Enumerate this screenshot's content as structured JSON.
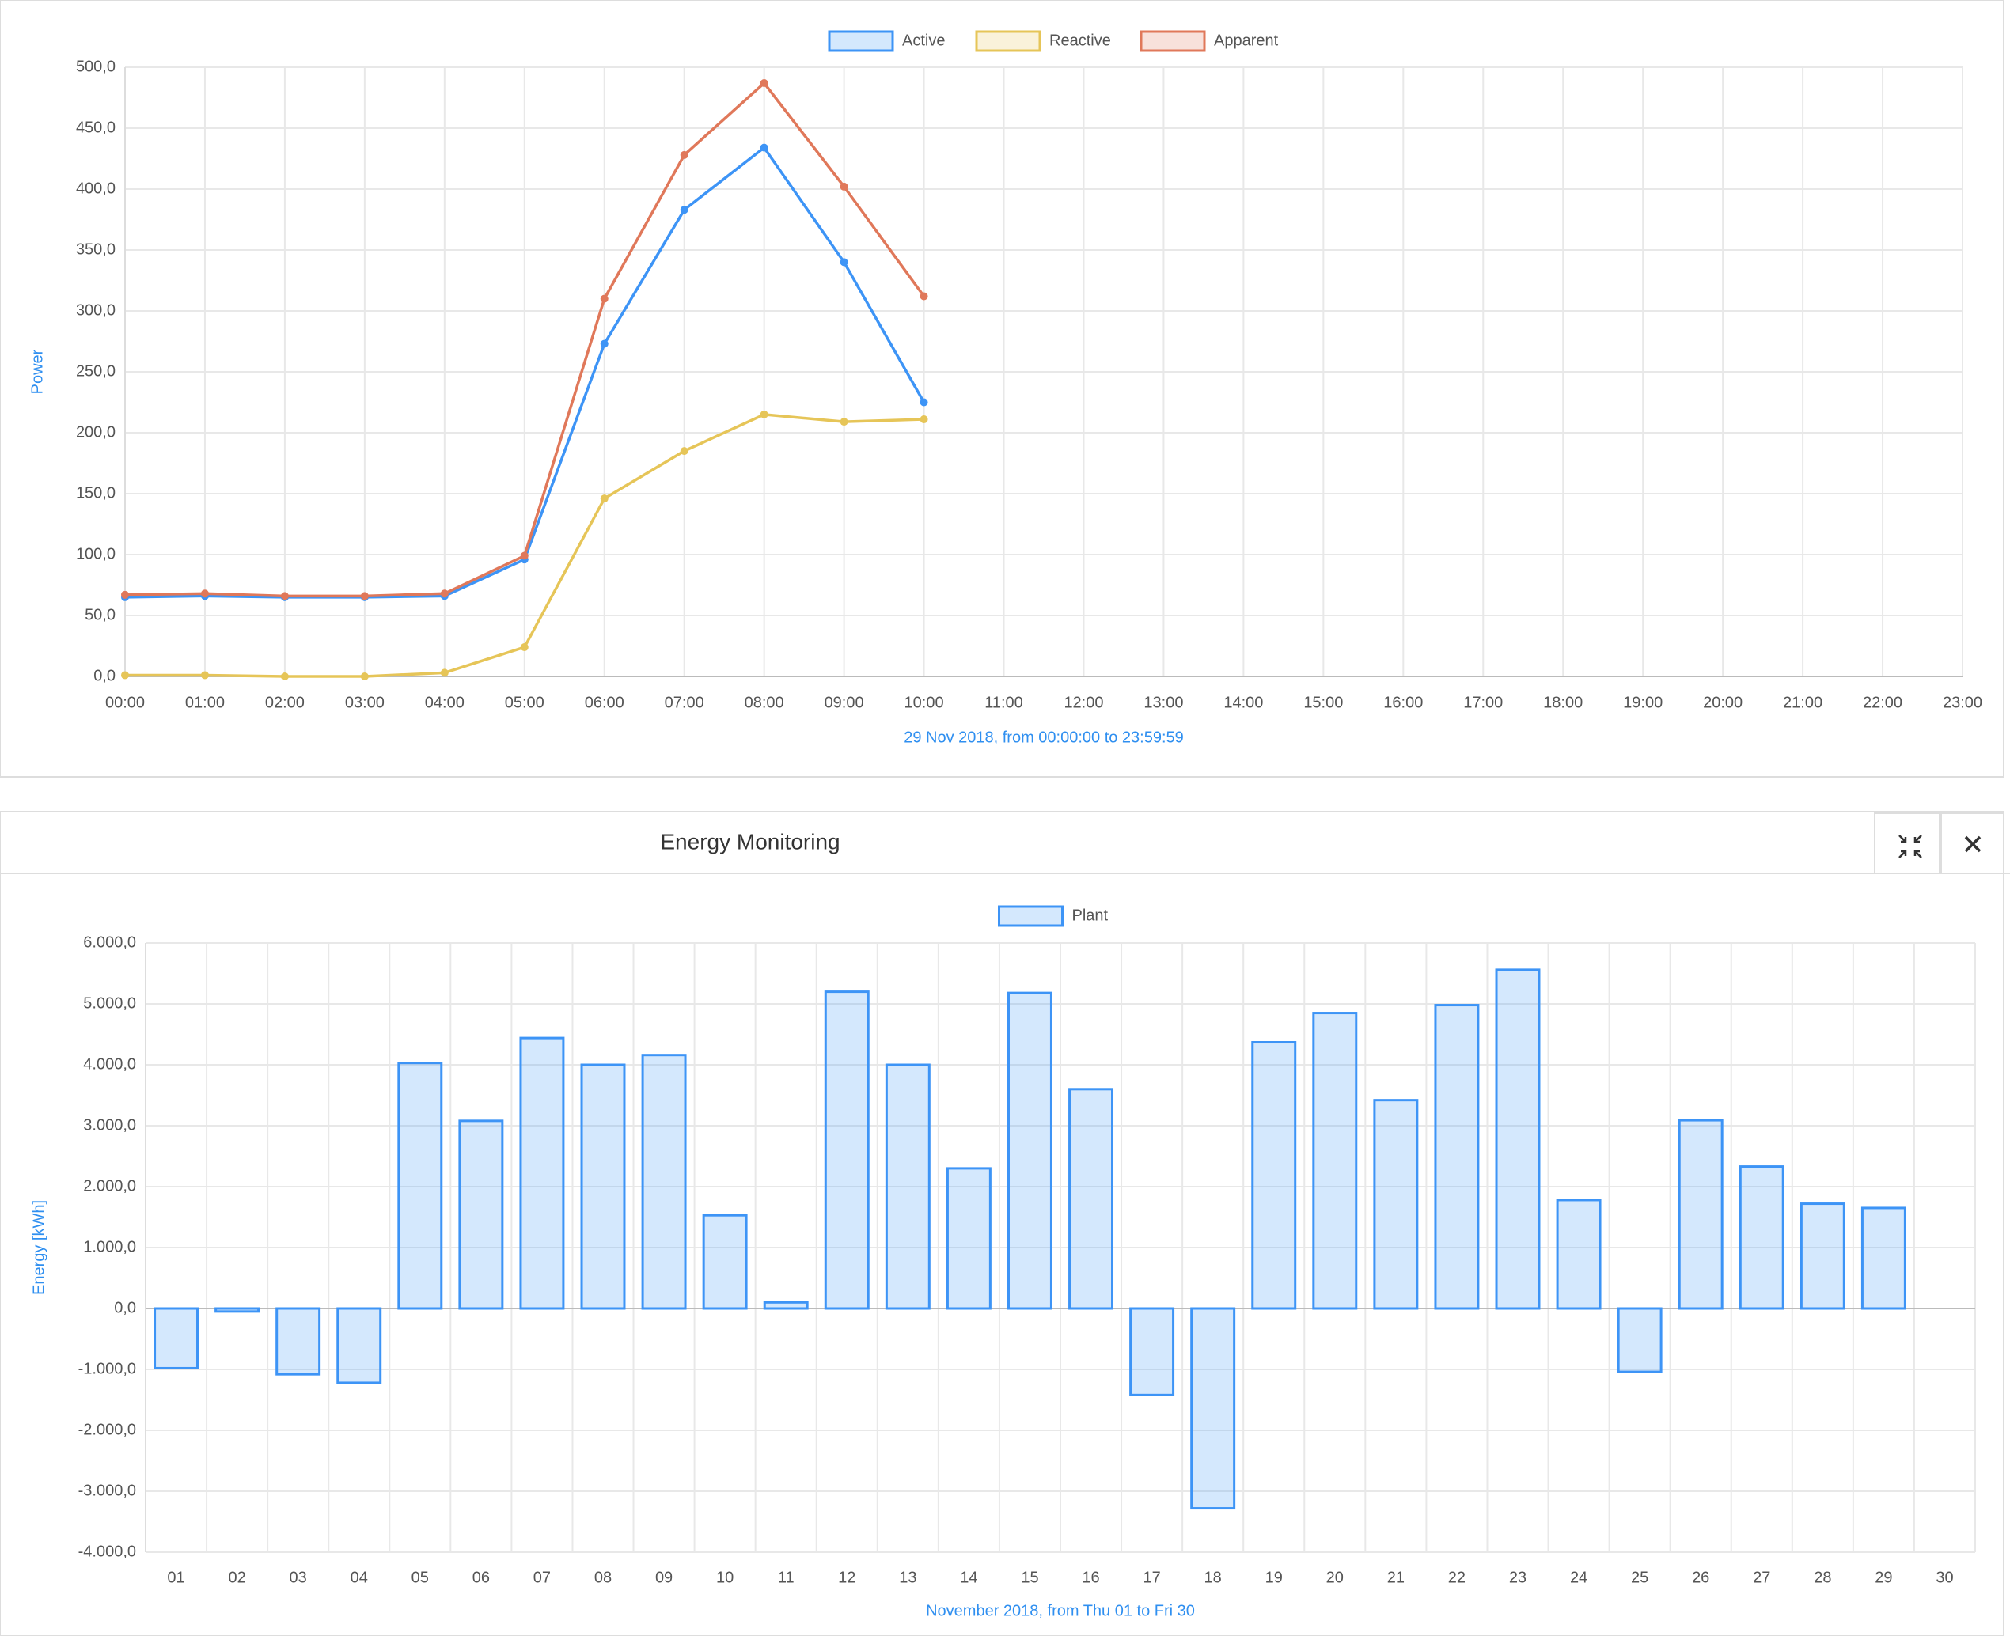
{
  "panel": {
    "title": "Energy Monitoring"
  },
  "chart_data": [
    {
      "type": "line",
      "y_label": "Power",
      "x_label": "29 Nov 2018, from 00:00:00 to 23:59:59",
      "categories": [
        "00:00",
        "01:00",
        "02:00",
        "03:00",
        "04:00",
        "05:00",
        "06:00",
        "07:00",
        "08:00",
        "09:00",
        "10:00",
        "11:00",
        "12:00",
        "13:00",
        "14:00",
        "15:00",
        "16:00",
        "17:00",
        "18:00",
        "19:00",
        "20:00",
        "21:00",
        "22:00",
        "23:00"
      ],
      "series": [
        {
          "name": "Active",
          "color": "#3d94f6",
          "values": [
            65,
            66,
            65,
            65,
            66,
            96,
            273,
            383,
            434,
            340,
            225,
            null,
            null,
            null,
            null,
            null,
            null,
            null,
            null,
            null,
            null,
            null,
            null,
            null
          ]
        },
        {
          "name": "Reactive",
          "color": "#e6c558",
          "values": [
            1,
            1,
            0,
            0,
            3,
            24,
            146,
            185,
            215,
            209,
            211,
            null,
            null,
            null,
            null,
            null,
            null,
            null,
            null,
            null,
            null,
            null,
            null,
            null
          ]
        },
        {
          "name": "Apparent",
          "color": "#e0785a",
          "values": [
            67,
            68,
            66,
            66,
            68,
            99,
            310,
            428,
            487,
            402,
            312,
            null,
            null,
            null,
            null,
            null,
            null,
            null,
            null,
            null,
            null,
            null,
            null,
            null
          ]
        }
      ],
      "ylim": [
        0,
        500
      ],
      "yticks": [
        {
          "value": 0,
          "label": "0,0"
        },
        {
          "value": 50,
          "label": "50,0"
        },
        {
          "value": 100,
          "label": "100,0"
        },
        {
          "value": 150,
          "label": "150,0"
        },
        {
          "value": 200,
          "label": "200,0"
        },
        {
          "value": 250,
          "label": "250,0"
        },
        {
          "value": 300,
          "label": "300,0"
        },
        {
          "value": 350,
          "label": "350,0"
        },
        {
          "value": 400,
          "label": "400,0"
        },
        {
          "value": 450,
          "label": "450,0"
        },
        {
          "value": 500,
          "label": "500,0"
        }
      ],
      "grid": true
    },
    {
      "type": "bar",
      "y_label": "Energy [kWh]",
      "x_label": "November 2018, from Thu 01 to Fri 30",
      "categories": [
        "01",
        "02",
        "03",
        "04",
        "05",
        "06",
        "07",
        "08",
        "09",
        "10",
        "11",
        "12",
        "13",
        "14",
        "15",
        "16",
        "17",
        "18",
        "19",
        "20",
        "21",
        "22",
        "23",
        "24",
        "25",
        "26",
        "27",
        "28",
        "29",
        "30"
      ],
      "series": [
        {
          "name": "Plant",
          "color": "#3d94f6",
          "values": [
            -980,
            -50,
            -1080,
            -1220,
            4030,
            3080,
            4440,
            4000,
            4160,
            1530,
            100,
            5200,
            4000,
            2300,
            5180,
            3600,
            -1420,
            -3280,
            4370,
            4850,
            3420,
            4980,
            5560,
            1780,
            -1040,
            3090,
            2330,
            1720,
            1650,
            null
          ]
        }
      ],
      "ylim": [
        -4000,
        6000
      ],
      "yticks": [
        {
          "value": -4000,
          "label": "-4.000,0"
        },
        {
          "value": -3000,
          "label": "-3.000,0"
        },
        {
          "value": -2000,
          "label": "-2.000,0"
        },
        {
          "value": -1000,
          "label": "-1.000,0"
        },
        {
          "value": 0,
          "label": "0,0"
        },
        {
          "value": 1000,
          "label": "1.000,0"
        },
        {
          "value": 2000,
          "label": "2.000,0"
        },
        {
          "value": 3000,
          "label": "3.000,0"
        },
        {
          "value": 4000,
          "label": "4.000,0"
        },
        {
          "value": 5000,
          "label": "5.000,0"
        },
        {
          "value": 6000,
          "label": "6.000,0"
        }
      ],
      "grid": true
    }
  ]
}
